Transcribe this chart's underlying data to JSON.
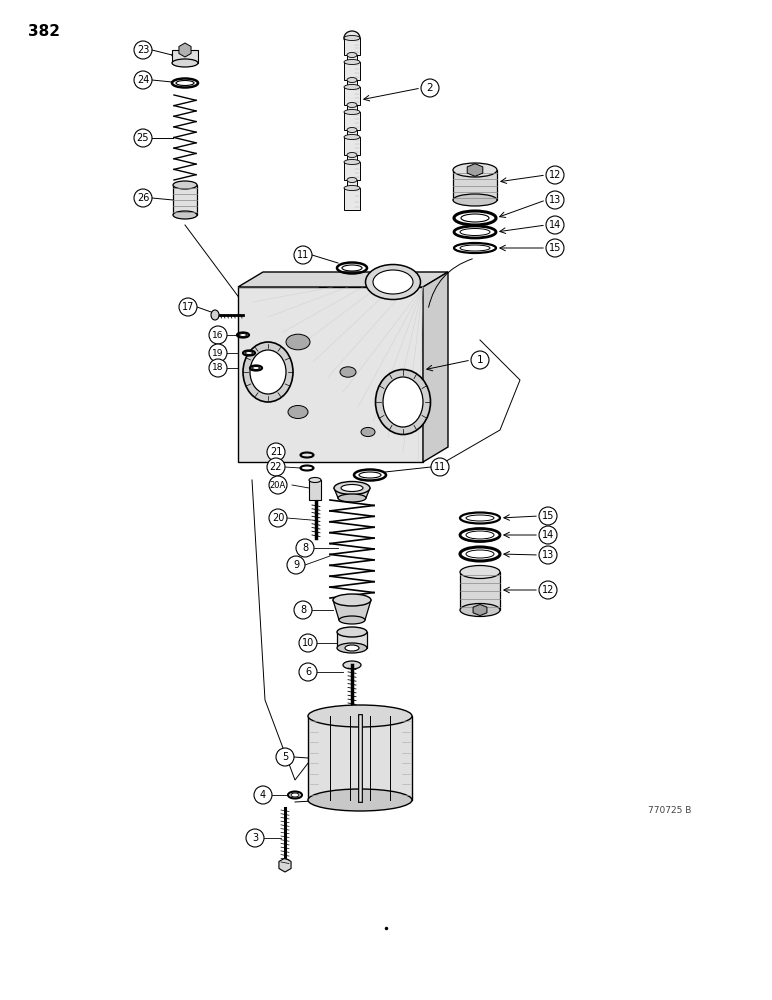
{
  "page_number": "382",
  "figure_id": "770725 B",
  "background_color": "#ffffff",
  "figsize": [
    7.72,
    10.0
  ],
  "dpi": 100
}
